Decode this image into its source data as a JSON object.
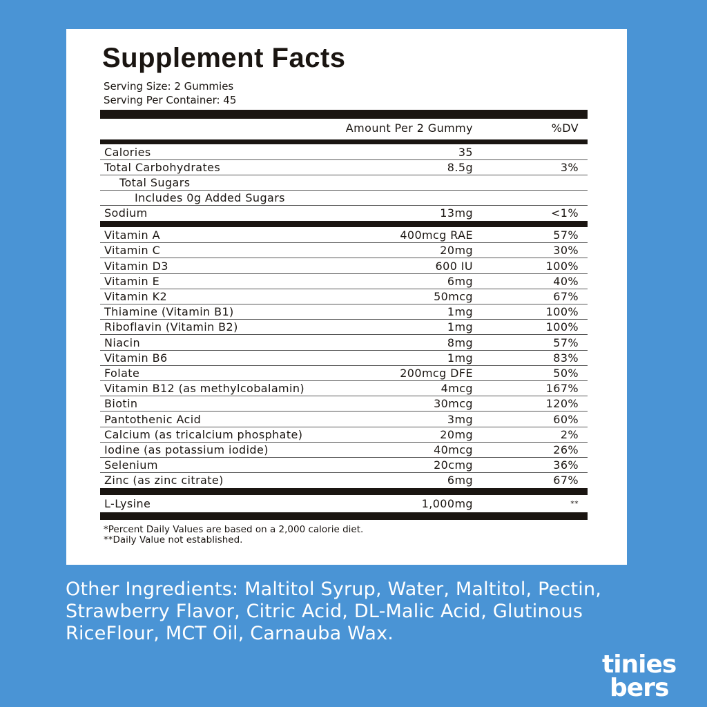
{
  "label": {
    "title": "Supplement Facts",
    "serving_size": "Serving Size: 2 Gummies",
    "servings": "Serving Per Container: 45",
    "header": {
      "amount": "Amount Per 2 Gummy",
      "dv": "%DV"
    },
    "sections": [
      {
        "rows": [
          {
            "name": "Calories",
            "amount": "35"
          },
          {
            "name": "Total Carbohydrates",
            "amount": "8.5g",
            "dv": "3%",
            "rows": [
              {
                "name": "Total Sugars",
                "rows": [
                  {
                    "name": "Includes 0g Added Sugars"
                  }
                ]
              }
            ]
          },
          {
            "name": "Sodium",
            "amount": "13mg",
            "dv": "<1%"
          }
        ]
      },
      {
        "rows": [
          {
            "name": "Vitamin A",
            "amount": "400mcg RAE",
            "dv": "57%"
          },
          {
            "name": "Vitamin C",
            "amount": "20mg",
            "dv": "30%"
          },
          {
            "name": "Vitamin D3",
            "amount": "600 IU",
            "dv": "100%"
          },
          {
            "name": "Vitamin E",
            "amount": "6mg",
            "dv": "40%"
          },
          {
            "name": "Vitamin K2",
            "amount": "50mcg",
            "dv": "67%"
          },
          {
            "name": "Thiamine (Vitamin B1)",
            "amount": "1mg",
            "dv": "100%"
          },
          {
            "name": "Riboflavin (Vitamin B2)",
            "amount": "1mg",
            "dv": "100%"
          },
          {
            "name": "Niacin",
            "amount": "8mg",
            "dv": "57%"
          },
          {
            "name": "Vitamin B6",
            "amount": "1mg",
            "dv": "83%"
          },
          {
            "name": "Folate",
            "amount": "200mcg DFE",
            "dv": "50%"
          },
          {
            "name": "Vitamin B12 (as methylcobalamin)",
            "amount": "4mcg",
            "dv": "167%"
          },
          {
            "name": "Biotin",
            "amount": "30mcg",
            "dv": "120%"
          },
          {
            "name": "Pantothenic Acid",
            "amount": "3mg",
            "dv": "60%"
          },
          {
            "name": "Calcium (as tricalcium phosphate)",
            "amount": "20mg",
            "dv": "2%"
          },
          {
            "name": "Iodine (as potassium iodide)",
            "amount": "40mcg",
            "dv": "26%"
          },
          {
            "name": "Selenium",
            "amount": "20cmg",
            "dv": "36%"
          },
          {
            "name": "Zinc (as zinc citrate)",
            "amount": "6mg",
            "dv": "67%"
          }
        ]
      },
      {
        "rows": [
          {
            "name": "L-Lysine",
            "amount": "1,000mg",
            "dv": "**"
          }
        ]
      }
    ],
    "footnotes": [
      "*Percent Daily Values are based on a 2,000 calorie diet.",
      "**Daily Value not established."
    ]
  },
  "other_ingredients": [
    "Other Ingredients: Maltitol Syrup, Water, Maltitol, Pectin,",
    "Strawberry Flavor, Citric Acid, DL-Malic Acid, Glutinous",
    "RiceFlour, MCT Oil, Carnauba Wax."
  ],
  "logo": [
    "tinies",
    "bers"
  ]
}
